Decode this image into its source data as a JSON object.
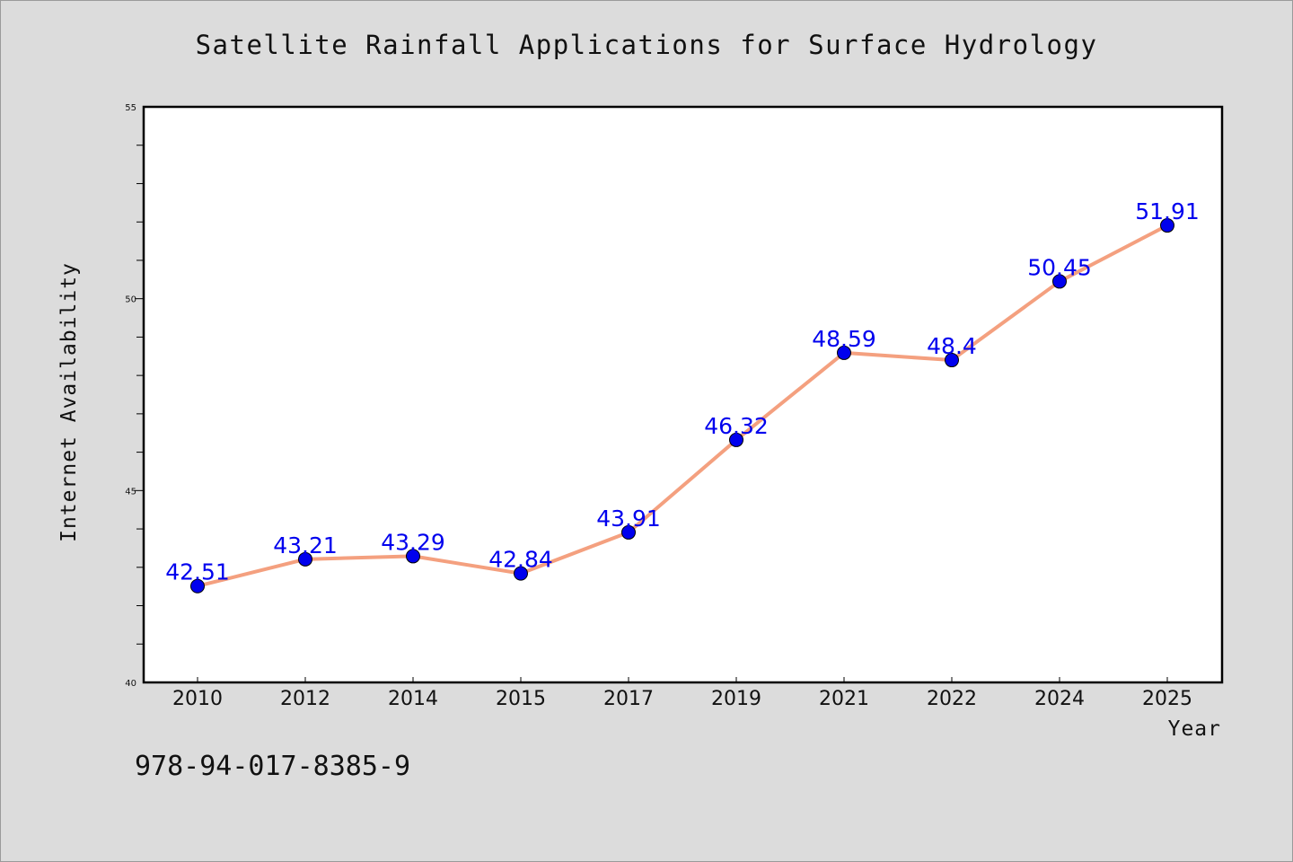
{
  "chart_data": {
    "type": "line",
    "title": "Satellite Rainfall Applications for Surface Hydrology",
    "xlabel": "Year",
    "ylabel": "Internet Availability",
    "categories": [
      "2010",
      "2012",
      "2014",
      "2015",
      "2017",
      "2019",
      "2021",
      "2022",
      "2024",
      "2025"
    ],
    "series": [
      {
        "values": [
          42.51,
          43.21,
          43.29,
          42.84,
          43.91,
          46.32,
          48.59,
          48.4,
          50.45,
          51.91
        ],
        "labels": [
          "42.51",
          "43.21",
          "43.29",
          "42.84",
          "43.91",
          "46.32",
          "48.59",
          "48.4",
          "50.45",
          "51.91"
        ]
      }
    ],
    "ylim": [
      40,
      55
    ],
    "yticks": [
      "40",
      "45",
      "50",
      "55"
    ],
    "grid": false,
    "legend": "none",
    "colors": {
      "line": "#f4a07f",
      "marker": "#0000ee",
      "label": "#0000ee",
      "background": "#dcdcdc",
      "plot_background": "#ffffff"
    }
  },
  "footer": {
    "isbn": "978-94-017-8385-9"
  }
}
